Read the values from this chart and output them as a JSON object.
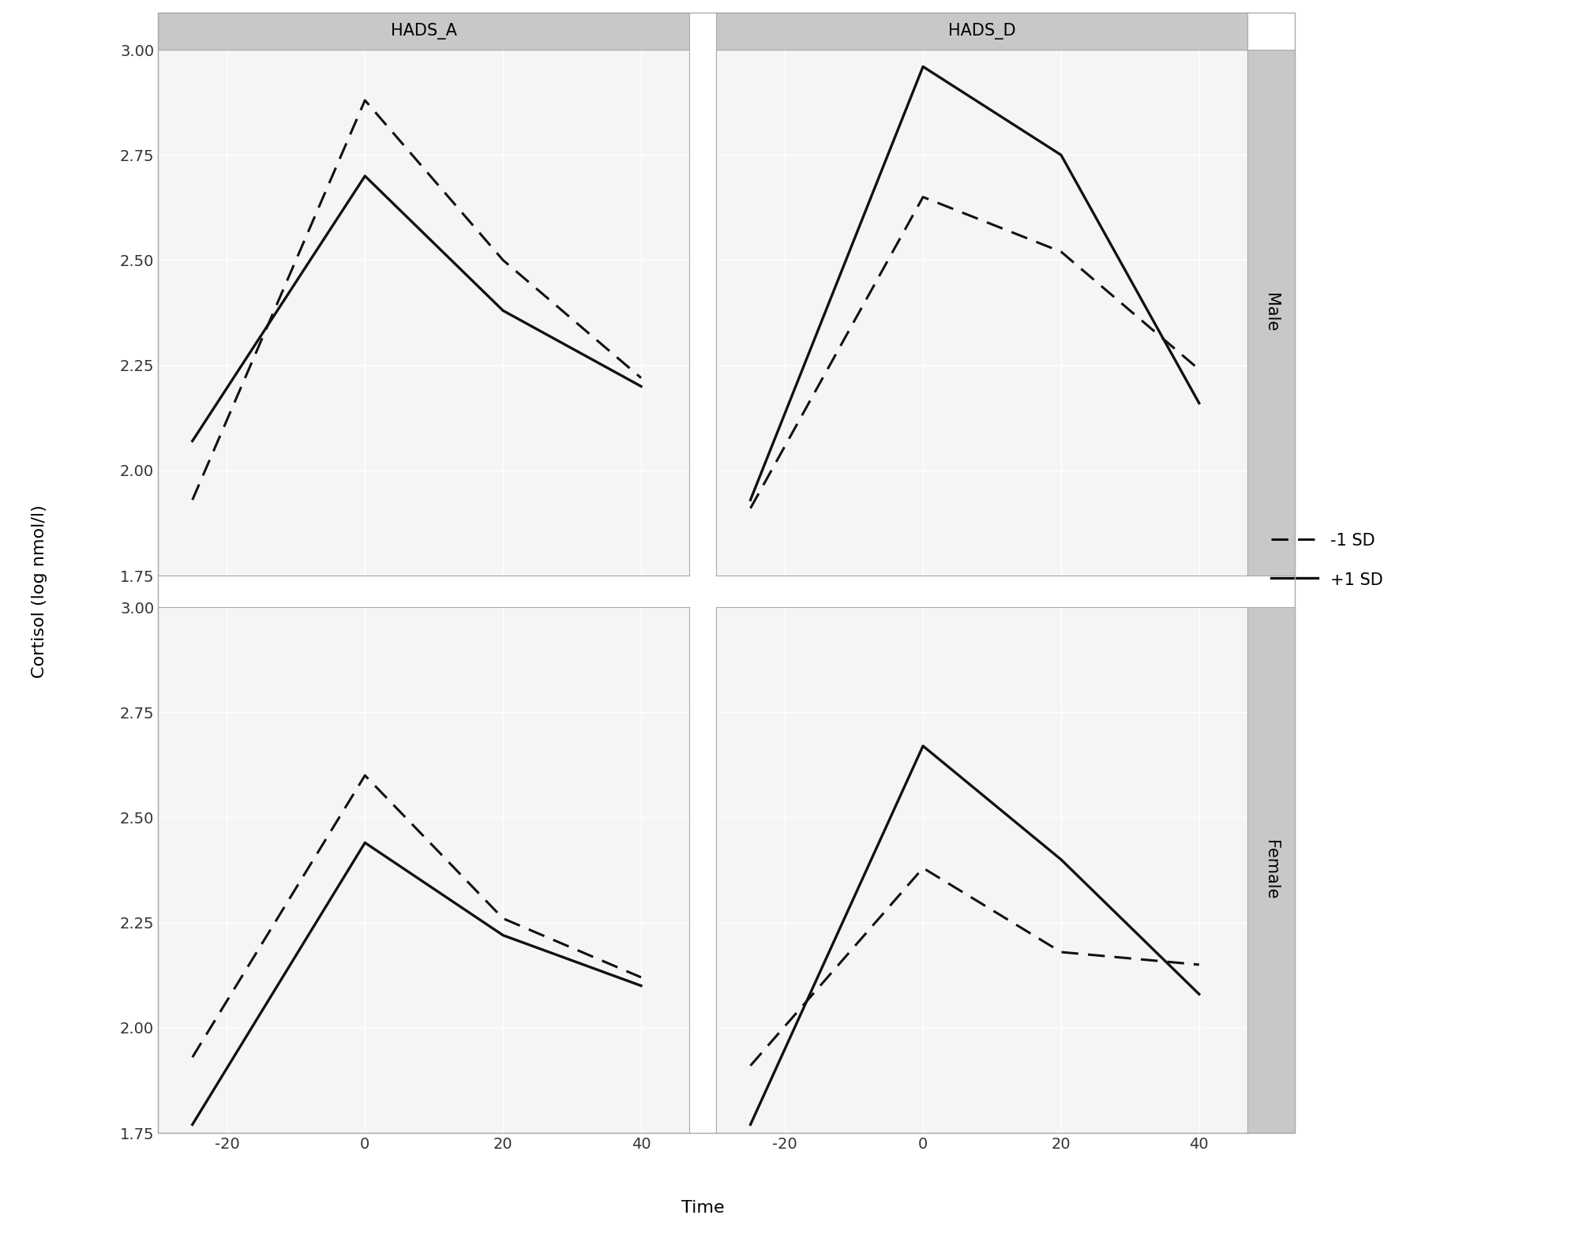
{
  "col_labels": [
    "HADS_A",
    "HADS_D"
  ],
  "row_labels": [
    "Male",
    "Female"
  ],
  "x_values": [
    -25,
    0,
    20,
    40
  ],
  "x_ticks": [
    -20,
    0,
    20,
    40
  ],
  "y_lim": [
    1.75,
    3.0
  ],
  "y_ticks": [
    1.75,
    2.0,
    2.25,
    2.5,
    2.75,
    3.0
  ],
  "x_lim": [
    -30,
    47
  ],
  "xlabel": "Time",
  "ylabel": "Cortisol (log nmol/l)",
  "outer_bg": "#ebebeb",
  "plot_bg": "#f5f5f5",
  "grid_color": "#ffffff",
  "strip_bg": "#c8c8c8",
  "border_color": "#aaaaaa",
  "line_color": "#111111",
  "data": {
    "Male_HADS_A": {
      "minus1sd": [
        1.93,
        2.88,
        2.5,
        2.22
      ],
      "plus1sd": [
        2.07,
        2.7,
        2.38,
        2.2
      ]
    },
    "Male_HADS_D": {
      "minus1sd": [
        1.91,
        2.65,
        2.52,
        2.24
      ],
      "plus1sd": [
        1.93,
        2.96,
        2.75,
        2.16
      ]
    },
    "Female_HADS_A": {
      "minus1sd": [
        1.93,
        2.6,
        2.26,
        2.12
      ],
      "plus1sd": [
        1.77,
        2.44,
        2.22,
        2.1
      ]
    },
    "Female_HADS_D": {
      "minus1sd": [
        1.91,
        2.38,
        2.18,
        2.15
      ],
      "plus1sd": [
        1.77,
        2.67,
        2.4,
        2.08
      ]
    }
  },
  "legend_labels": [
    "-1 SD",
    "+1 SD"
  ],
  "dashed_lw": 2.2,
  "solid_lw": 2.4,
  "font_size_tick": 14,
  "font_size_label": 16,
  "font_size_strip": 15,
  "font_size_legend": 15
}
